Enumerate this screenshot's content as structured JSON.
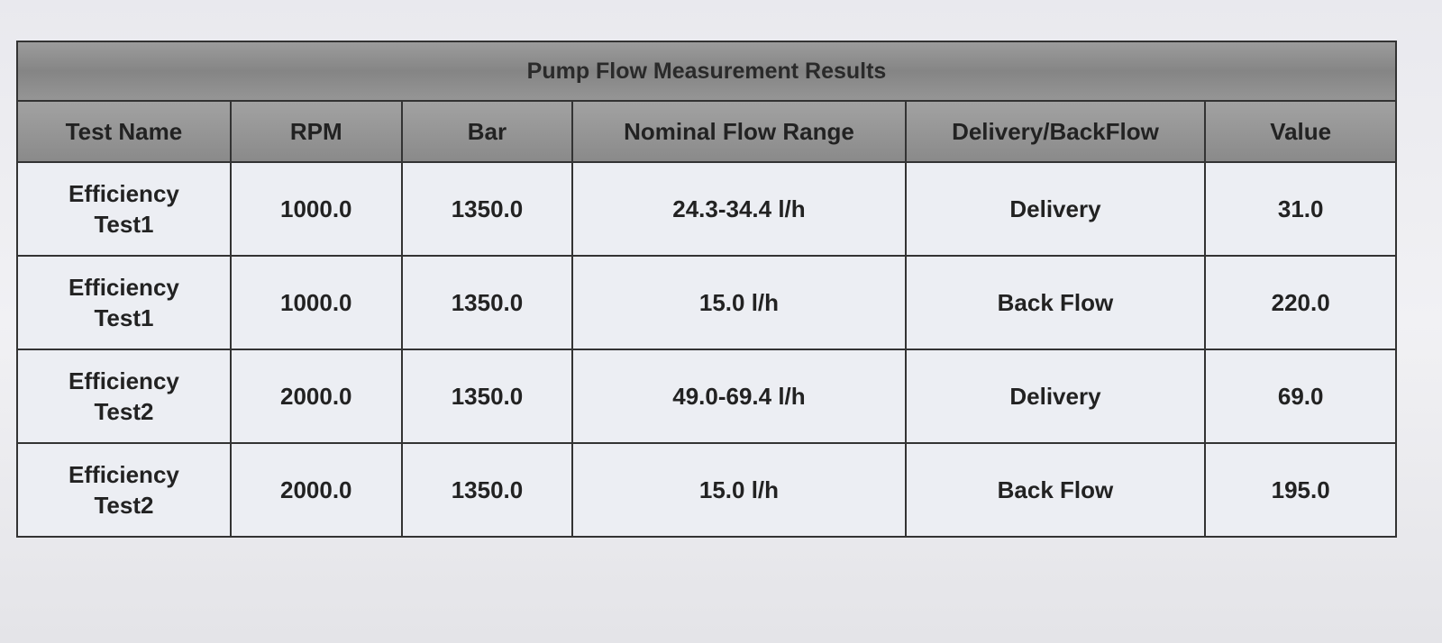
{
  "table": {
    "title": "Pump Flow Measurement Results",
    "columns": [
      "Test Name",
      "RPM",
      "Bar",
      "Nominal Flow Range",
      "Delivery/BackFlow",
      "Value"
    ],
    "rows": [
      [
        "Efficiency Test1",
        "1000.0",
        "1350.0",
        "24.3-34.4 l/h",
        "Delivery",
        "31.0"
      ],
      [
        "Efficiency Test1",
        "1000.0",
        "1350.0",
        "15.0 l/h",
        "Back Flow",
        "220.0"
      ],
      [
        "Efficiency Test2",
        "2000.0",
        "1350.0",
        "49.0-69.4 l/h",
        "Delivery",
        "69.0"
      ],
      [
        "Efficiency Test2",
        "2000.0",
        "1350.0",
        "15.0 l/h",
        "Back Flow",
        "195.0"
      ]
    ]
  }
}
